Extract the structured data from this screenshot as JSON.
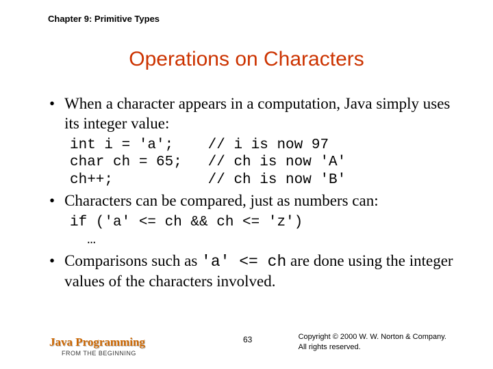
{
  "header": {
    "chapter_label": "Chapter 9: Primitive Types"
  },
  "title": "Operations on Characters",
  "bullets": [
    {
      "text_before": "When a character appears in a computation, Java simply uses its integer value:",
      "code": "int i = 'a';    // i is now 97\nchar ch = 65;   // ch is now 'A'\nch++;           // ch is now 'B'"
    },
    {
      "text_before": "Characters can be compared, just as numbers can:",
      "code": "if ('a' <= ch && ch <= 'z')\n  …"
    },
    {
      "mixed": true,
      "prefix": "Comparisons such as ",
      "code_inline": "'a' <= ch",
      "suffix": " are done using the integer values of the characters involved."
    }
  ],
  "footer": {
    "book_title": "Java Programming",
    "book_subtitle": "FROM THE BEGINNING",
    "page_number": "63",
    "copyright_line1": "Copyright © 2000 W. W. Norton & Company.",
    "copyright_line2": "All rights reserved."
  },
  "colors": {
    "title_color": "#cc3300",
    "footer_title_color": "#cc6600",
    "background": "#ffffff",
    "text": "#000000"
  },
  "typography": {
    "title_fontsize": 30,
    "body_fontsize": 23,
    "code_fontsize": 21,
    "chapter_fontsize": 13,
    "footer_title_fontsize": 17,
    "footer_sub_fontsize": 9,
    "footer_page_fontsize": 12,
    "footer_copy_fontsize": 11
  }
}
